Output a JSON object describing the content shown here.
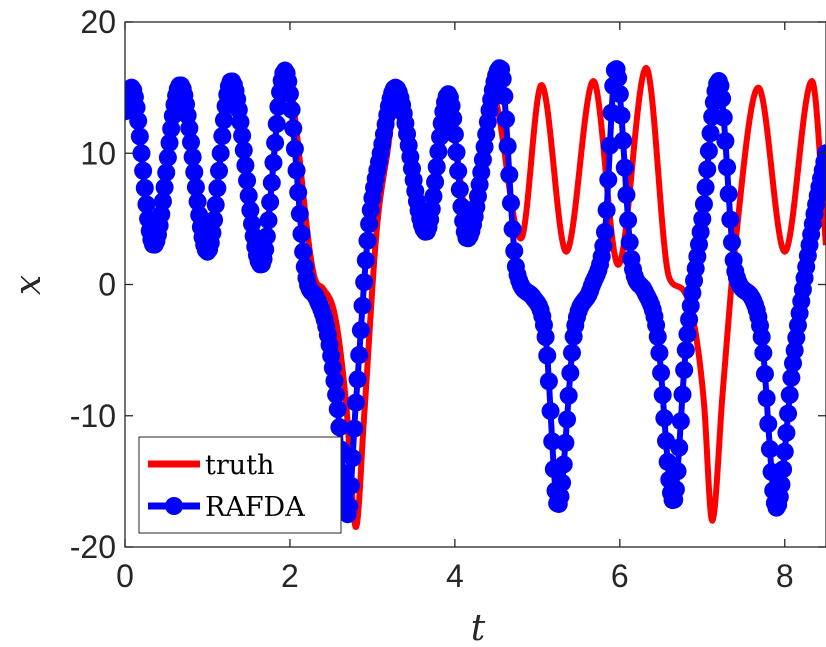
{
  "chart_data": {
    "type": "line",
    "title": "",
    "xlabel": "t",
    "ylabel": "x",
    "xlim": [
      0,
      8.5
    ],
    "ylim": [
      -20,
      20
    ],
    "xticks": [
      0,
      2,
      4,
      6,
      8
    ],
    "yticks": [
      -20,
      -10,
      0,
      10,
      20
    ],
    "xtick_labels": [
      "0",
      "2",
      "4",
      "6",
      "8"
    ],
    "ytick_labels": [
      "-20",
      "-10",
      "0",
      "10",
      "20"
    ],
    "grid": false,
    "legend_position": "bottom-left",
    "series": [
      {
        "name": "truth",
        "color": "#ff0000",
        "marker": "none",
        "points": [
          [
            0.0,
            13.2
          ],
          [
            0.08,
            15.0
          ],
          [
            0.35,
            3.0
          ],
          [
            0.67,
            15.2
          ],
          [
            1.0,
            2.5
          ],
          [
            1.29,
            15.5
          ],
          [
            1.65,
            1.5
          ],
          [
            1.94,
            16.3
          ],
          [
            2.3,
            0.5
          ],
          [
            2.4,
            -0.3
          ],
          [
            2.55,
            -2.5
          ],
          [
            2.68,
            -9.0
          ],
          [
            2.8,
            -18.5
          ],
          [
            2.9,
            -10.0
          ],
          [
            3.05,
            4.0
          ],
          [
            3.18,
            10.0
          ],
          [
            3.3,
            14.5
          ],
          [
            3.68,
            4.0
          ],
          [
            3.92,
            13.0
          ],
          [
            4.2,
            3.5
          ],
          [
            4.45,
            14.5
          ],
          [
            4.8,
            3.5
          ],
          [
            5.05,
            15.2
          ],
          [
            5.35,
            2.5
          ],
          [
            5.68,
            15.5
          ],
          [
            5.98,
            1.5
          ],
          [
            6.32,
            16.5
          ],
          [
            6.6,
            0.5
          ],
          [
            6.75,
            -0.3
          ],
          [
            6.9,
            -3.0
          ],
          [
            7.02,
            -9.0
          ],
          [
            7.12,
            -18.0
          ],
          [
            7.25,
            -8.0
          ],
          [
            7.4,
            3.0
          ],
          [
            7.68,
            15.0
          ],
          [
            8.0,
            2.5
          ],
          [
            8.33,
            15.5
          ],
          [
            8.5,
            3.0
          ]
        ]
      },
      {
        "name": "RAFDA",
        "color": "#0000ff",
        "marker": "circle",
        "points": [
          [
            0.0,
            13.2
          ],
          [
            0.08,
            15.0
          ],
          [
            0.35,
            3.0
          ],
          [
            0.67,
            15.2
          ],
          [
            1.0,
            2.5
          ],
          [
            1.29,
            15.5
          ],
          [
            1.65,
            1.5
          ],
          [
            1.94,
            16.3
          ],
          [
            2.2,
            0.5
          ],
          [
            2.32,
            -1.0
          ],
          [
            2.45,
            -3.5
          ],
          [
            2.58,
            -9.5
          ],
          [
            2.7,
            -17.5
          ],
          [
            2.8,
            -9.0
          ],
          [
            2.95,
            4.0
          ],
          [
            3.1,
            10.0
          ],
          [
            3.28,
            15.0
          ],
          [
            3.65,
            4.0
          ],
          [
            3.92,
            14.5
          ],
          [
            4.15,
            3.5
          ],
          [
            4.55,
            16.5
          ],
          [
            4.75,
            1.0
          ],
          [
            4.95,
            -1.0
          ],
          [
            5.1,
            -4.0
          ],
          [
            5.25,
            -16.8
          ],
          [
            5.45,
            -3.5
          ],
          [
            5.65,
            -0.3
          ],
          [
            5.82,
            4.0
          ],
          [
            5.95,
            16.5
          ],
          [
            6.15,
            1.5
          ],
          [
            6.3,
            -0.5
          ],
          [
            6.45,
            -3.5
          ],
          [
            6.65,
            -16.5
          ],
          [
            6.8,
            -5.0
          ],
          [
            7.0,
            5.0
          ],
          [
            7.2,
            15.5
          ],
          [
            7.4,
            1.0
          ],
          [
            7.6,
            -1.0
          ],
          [
            7.72,
            -4.0
          ],
          [
            7.9,
            -17.0
          ],
          [
            8.1,
            -6.0
          ],
          [
            8.35,
            5.0
          ],
          [
            8.5,
            10.0
          ]
        ]
      }
    ]
  }
}
